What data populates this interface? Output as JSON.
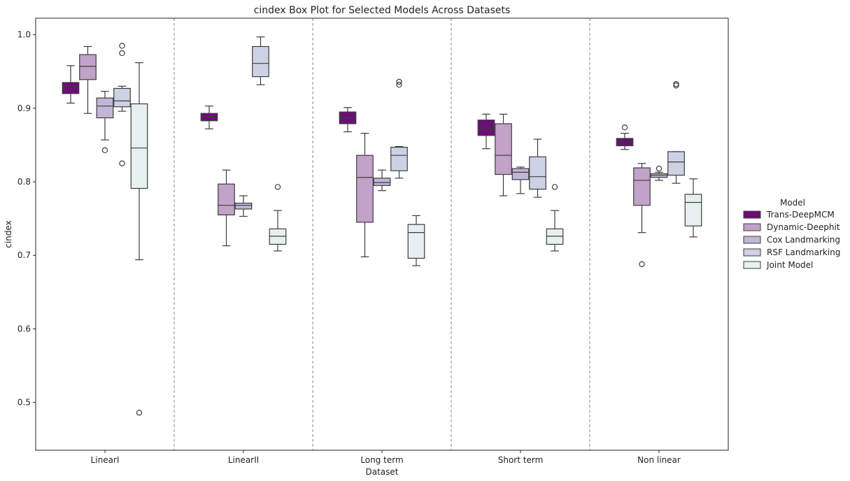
{
  "chart_data": {
    "type": "box",
    "title": "cindex Box Plot for Selected Models Across Datasets",
    "xlabel": "Dataset",
    "ylabel": "cindex",
    "categories": [
      "LinearI",
      "LinearII",
      "Long term",
      "Short term",
      "Non linear"
    ],
    "ylim": [
      0.435,
      1.0225
    ],
    "yticks": [
      0.5,
      0.6,
      0.7,
      0.8,
      0.9,
      1.0
    ],
    "ytick_labels": [
      "0.5",
      "0.6",
      "0.7",
      "0.8",
      "0.9",
      "1.0"
    ],
    "grid": false,
    "category_separators": "dashed",
    "legend": {
      "title": "Model",
      "placement": "right",
      "entries": [
        "Trans-DeepMCM",
        "Dynamic-Deephit",
        "Cox Landmarking",
        "RSF Landmarking",
        "Joint Model"
      ]
    },
    "series": [
      {
        "name": "Trans-DeepMCM",
        "color": "#6a0f73",
        "boxes": [
          {
            "whislo": 0.907,
            "q1": 0.92,
            "med": 0.93,
            "q3": 0.935,
            "whishi": 0.958,
            "fliers": []
          },
          {
            "whislo": 0.872,
            "q1": 0.883,
            "med": 0.889,
            "q3": 0.893,
            "whishi": 0.903,
            "fliers": []
          },
          {
            "whislo": 0.868,
            "q1": 0.879,
            "med": 0.887,
            "q3": 0.895,
            "whishi": 0.901,
            "fliers": []
          },
          {
            "whislo": 0.845,
            "q1": 0.863,
            "med": 0.873,
            "q3": 0.884,
            "whishi": 0.892,
            "fliers": []
          },
          {
            "whislo": 0.844,
            "q1": 0.849,
            "med": 0.855,
            "q3": 0.859,
            "whishi": 0.866,
            "fliers": [
              0.874
            ]
          }
        ]
      },
      {
        "name": "Dynamic-Deephit",
        "color": "#c2a2c9",
        "boxes": [
          {
            "whislo": 0.893,
            "q1": 0.939,
            "med": 0.957,
            "q3": 0.973,
            "whishi": 0.984,
            "fliers": []
          },
          {
            "whislo": 0.713,
            "q1": 0.755,
            "med": 0.768,
            "q3": 0.797,
            "whishi": 0.816,
            "fliers": []
          },
          {
            "whislo": 0.698,
            "q1": 0.745,
            "med": 0.806,
            "q3": 0.836,
            "whishi": 0.866,
            "fliers": []
          },
          {
            "whislo": 0.781,
            "q1": 0.81,
            "med": 0.836,
            "q3": 0.879,
            "whishi": 0.892,
            "fliers": []
          },
          {
            "whislo": 0.731,
            "q1": 0.768,
            "med": 0.802,
            "q3": 0.819,
            "whishi": 0.825,
            "fliers": [
              0.688
            ]
          }
        ]
      },
      {
        "name": "Cox Landmarking",
        "color": "#c0b6d8",
        "boxes": [
          {
            "whislo": 0.857,
            "q1": 0.887,
            "med": 0.903,
            "q3": 0.914,
            "whishi": 0.923,
            "fliers": [
              0.843
            ]
          },
          {
            "whislo": 0.753,
            "q1": 0.763,
            "med": 0.768,
            "q3": 0.771,
            "whishi": 0.781,
            "fliers": []
          },
          {
            "whislo": 0.788,
            "q1": 0.795,
            "med": 0.799,
            "q3": 0.805,
            "whishi": 0.816,
            "fliers": []
          },
          {
            "whislo": 0.784,
            "q1": 0.803,
            "med": 0.813,
            "q3": 0.818,
            "whishi": 0.82,
            "fliers": []
          },
          {
            "whislo": 0.802,
            "q1": 0.806,
            "med": 0.809,
            "q3": 0.811,
            "whishi": 0.813,
            "fliers": [
              0.818
            ]
          }
        ]
      },
      {
        "name": "RSF Landmarking",
        "color": "#cdd1e4",
        "boxes": [
          {
            "whislo": 0.896,
            "q1": 0.902,
            "med": 0.91,
            "q3": 0.927,
            "whishi": 0.93,
            "fliers": [
              0.825,
              0.975,
              0.985
            ]
          },
          {
            "whislo": 0.932,
            "q1": 0.943,
            "med": 0.961,
            "q3": 0.984,
            "whishi": 0.997,
            "fliers": []
          },
          {
            "whislo": 0.805,
            "q1": 0.815,
            "med": 0.836,
            "q3": 0.847,
            "whishi": 0.848,
            "fliers": [
              0.932,
              0.936
            ]
          },
          {
            "whislo": 0.779,
            "q1": 0.79,
            "med": 0.807,
            "q3": 0.834,
            "whishi": 0.858,
            "fliers": []
          },
          {
            "whislo": 0.798,
            "q1": 0.809,
            "med": 0.827,
            "q3": 0.841,
            "whishi": 0.841,
            "fliers": [
              0.931,
              0.933
            ]
          }
        ]
      },
      {
        "name": "Joint Model",
        "color": "#e6f0ef",
        "boxes": [
          {
            "whislo": 0.694,
            "q1": 0.791,
            "med": 0.846,
            "q3": 0.906,
            "whishi": 0.962,
            "fliers": [
              0.486
            ]
          },
          {
            "whislo": 0.706,
            "q1": 0.715,
            "med": 0.726,
            "q3": 0.736,
            "whishi": 0.761,
            "fliers": [
              0.793
            ]
          },
          {
            "whislo": 0.686,
            "q1": 0.696,
            "med": 0.731,
            "q3": 0.742,
            "whishi": 0.754,
            "fliers": []
          },
          {
            "whislo": 0.706,
            "q1": 0.715,
            "med": 0.726,
            "q3": 0.736,
            "whishi": 0.761,
            "fliers": [
              0.793
            ]
          },
          {
            "whislo": 0.725,
            "q1": 0.74,
            "med": 0.772,
            "q3": 0.783,
            "whishi": 0.804,
            "fliers": []
          }
        ]
      }
    ],
    "colors": {
      "edge": "#3d3d3d",
      "separator": "#8a8a8a",
      "axes": "#222222"
    }
  }
}
